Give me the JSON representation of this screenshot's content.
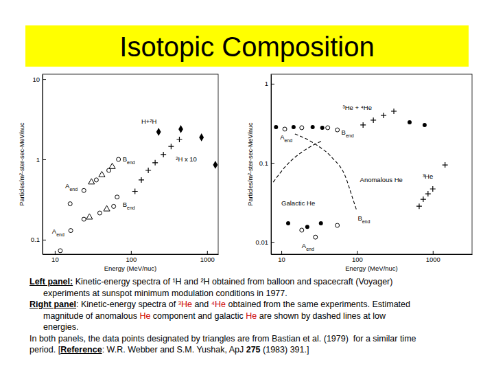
{
  "title": "Isotopic Composition",
  "chart_data": [
    {
      "type": "scatter",
      "log": true,
      "x_label": "Energy (MeV/nuc)",
      "y_label": "Particles/m²-ster-sec-MeV/nuc",
      "xlim": [
        6.9,
        1400
      ],
      "ylim": [
        0.066,
        11.5
      ],
      "xticks": [
        10,
        100,
        1000
      ],
      "yticks": [
        0.1,
        1,
        10
      ],
      "series": [
        {
          "marker": "diamond",
          "color": "#000000",
          "x": [
            231,
            452,
            845,
            1285
          ],
          "values": [
            2.2,
            2.38,
            1.88,
            0.855
          ]
        },
        {
          "marker": "circle-open",
          "color": "#000000",
          "x": [
            15.9,
            24.1,
            35.1,
            51.2,
            68.6
          ],
          "values": [
            0.28,
            0.41,
            0.555,
            0.73,
            1.0
          ]
        },
        {
          "marker": "triangle-open",
          "color": "#000000",
          "x": [
            30.3,
            41.5,
            56.8
          ],
          "values": [
            0.52,
            0.64,
            0.81
          ]
        },
        {
          "marker": "plus",
          "color": "#000000",
          "x": [
            113,
            137,
            169,
            208,
            267,
            337,
            433
          ],
          "values": [
            0.4,
            0.555,
            0.73,
            0.91,
            1.15,
            1.45,
            1.77
          ]
        },
        {
          "marker": "circle-open",
          "color": "#000000",
          "x": [
            11.8,
            16.2,
            24.1,
            39.0,
            59.3,
            65.8
          ],
          "values": [
            0.073,
            0.13,
            0.18,
            0.215,
            0.26,
            0.34
          ]
        },
        {
          "marker": "triangle-open",
          "color": "#000000",
          "x": [
            28.5,
            48.1
          ],
          "values": [
            0.19,
            0.24
          ]
        }
      ],
      "annotations": [
        {
          "text": "H+²H",
          "x": 137,
          "y": 2.95
        },
        {
          "text": "²H x 10",
          "x": 389,
          "y": 1.0
        },
        {
          "text": "A",
          "subscript": "end",
          "x": 13.7,
          "y": 0.47
        },
        {
          "text": "B",
          "subscript": "end",
          "x": 77.8,
          "y": 1.0
        },
        {
          "text": "A",
          "subscript": "end",
          "x": 9.2,
          "y": 0.127
        },
        {
          "text": "B",
          "subscript": "end",
          "x": 77.8,
          "y": 0.273
        }
      ]
    },
    {
      "type": "scatter",
      "log": true,
      "x_label": "Energy (MeV/nuc)",
      "y_label": "Particles/m²-ster-sec-MeV/nuc",
      "xlim": [
        7.3,
        3300
      ],
      "ylim": [
        0.007,
        1.32
      ],
      "xticks": [
        10,
        100,
        1000
      ],
      "yticks": [
        0.01,
        0.1,
        1
      ],
      "series": [
        {
          "marker": "circle",
          "color": "#000000",
          "x": [
            8.5,
            14.5,
            25.9,
            34.7,
            494,
            780
          ],
          "values": [
            0.283,
            0.283,
            0.283,
            0.278,
            0.326,
            0.301
          ]
        },
        {
          "marker": "circle-open",
          "color": "#000000",
          "x": [
            11.1,
            18.6,
            41.0,
            54.8
          ],
          "values": [
            0.267,
            0.278,
            0.278,
            0.261
          ]
        },
        {
          "marker": "plus",
          "color": "#000000",
          "x": [
            120,
            164,
            224,
            306,
            1452
          ],
          "values": [
            0.301,
            0.346,
            0.398,
            0.449,
            0.094
          ]
        },
        {
          "marker": "plus",
          "color": "#000000",
          "x": [
            661,
            748,
            865,
            1000
          ],
          "values": [
            0.0283,
            0.0346,
            0.0406,
            0.0468
          ]
        },
        {
          "marker": "circle",
          "color": "#000000",
          "x": [
            12.3,
            22.0,
            33.3
          ],
          "values": [
            0.0172,
            0.0155,
            0.0172
          ]
        },
        {
          "marker": "circle-open",
          "color": "#000000",
          "x": [
            18.6,
            28.2,
            54.8
          ],
          "values": [
            0.0141,
            0.0115,
            0.0162
          ]
        },
        {
          "type": "line",
          "line_style": "dashed",
          "color": "#000000",
          "x": [
            7.8,
            12.3,
            20.6,
            34.7
          ],
          "values": [
            0.057,
            0.098,
            0.146,
            0.19
          ]
        },
        {
          "type": "line",
          "line_style": "dashed",
          "color": "#000000",
          "x": [
            15.1,
            28.2,
            47.4,
            68.9,
            88.3,
            98.0
          ],
          "values": [
            0.232,
            0.172,
            0.115,
            0.07,
            0.0346,
            0.0256
          ]
        }
      ],
      "annotations": [
        {
          "text": "³He + ⁴He",
          "x": 64.7,
          "y": 0.497
        },
        {
          "text": "A",
          "subscript": "end",
          "x": 9.6,
          "y": 0.21
        },
        {
          "text": "B",
          "subscript": "end",
          "x": 62.1,
          "y": 0.241
        },
        {
          "text": "Anomalous He",
          "x": 109,
          "y": 0.0608
        },
        {
          "text": "³He",
          "x": 733,
          "y": 0.067
        },
        {
          "text": "Galactic He",
          "x": 10,
          "y": 0.0312
        },
        {
          "text": "B",
          "subscript": "end",
          "x": 102,
          "y": 0.0198
        },
        {
          "text": "A",
          "subscript": "end",
          "x": 18.6,
          "y": 0.0089
        }
      ]
    }
  ],
  "caption": [
    {
      "indent": false,
      "runs": [
        {
          "text": "Left panel:",
          "bold": true,
          "underline": true
        },
        {
          "text": " Kinetic-energy spectra of ¹H and ²H obtained from balloon and spacecraft (Voyager)"
        }
      ]
    },
    {
      "indent": true,
      "runs": [
        {
          "text": "experiments at sunspot minimum modulation conditions in 1977."
        }
      ]
    },
    {
      "indent": false,
      "runs": [
        {
          "text": "Right panel",
          "bold": true,
          "underline": true
        },
        {
          "text": ": Kinetic-energy spectra of "
        },
        {
          "text": "³He",
          "color": "#cc0000"
        },
        {
          "text": " and "
        },
        {
          "text": "⁴He",
          "color": "#cc0000"
        },
        {
          "text": " obtained from the same experiments. Estimated"
        }
      ]
    },
    {
      "indent": true,
      "runs": [
        {
          "text": "magnitude of anomalous "
        },
        {
          "text": "He",
          "color": "#cc0000"
        },
        {
          "text": " component and galactic "
        },
        {
          "text": "He",
          "color": "#cc0000"
        },
        {
          "text": " are shown by dashed lines at low"
        }
      ]
    },
    {
      "indent": true,
      "runs": [
        {
          "text": "energies."
        }
      ]
    },
    {
      "indent": false,
      "runs": [
        {
          "text": "In both panels, the data points designated by triangles are from Bastian et al. (1979)  for a similar time"
        }
      ]
    },
    {
      "indent": false,
      "runs": [
        {
          "text": "period. ["
        },
        {
          "text": "Reference",
          "bold": true,
          "underline": true
        },
        {
          "text": ": W.R. Webber and S.M. Yushak, ApJ "
        },
        {
          "text": "275",
          "bold": true
        },
        {
          "text": " (1983) 391.]"
        }
      ]
    }
  ]
}
